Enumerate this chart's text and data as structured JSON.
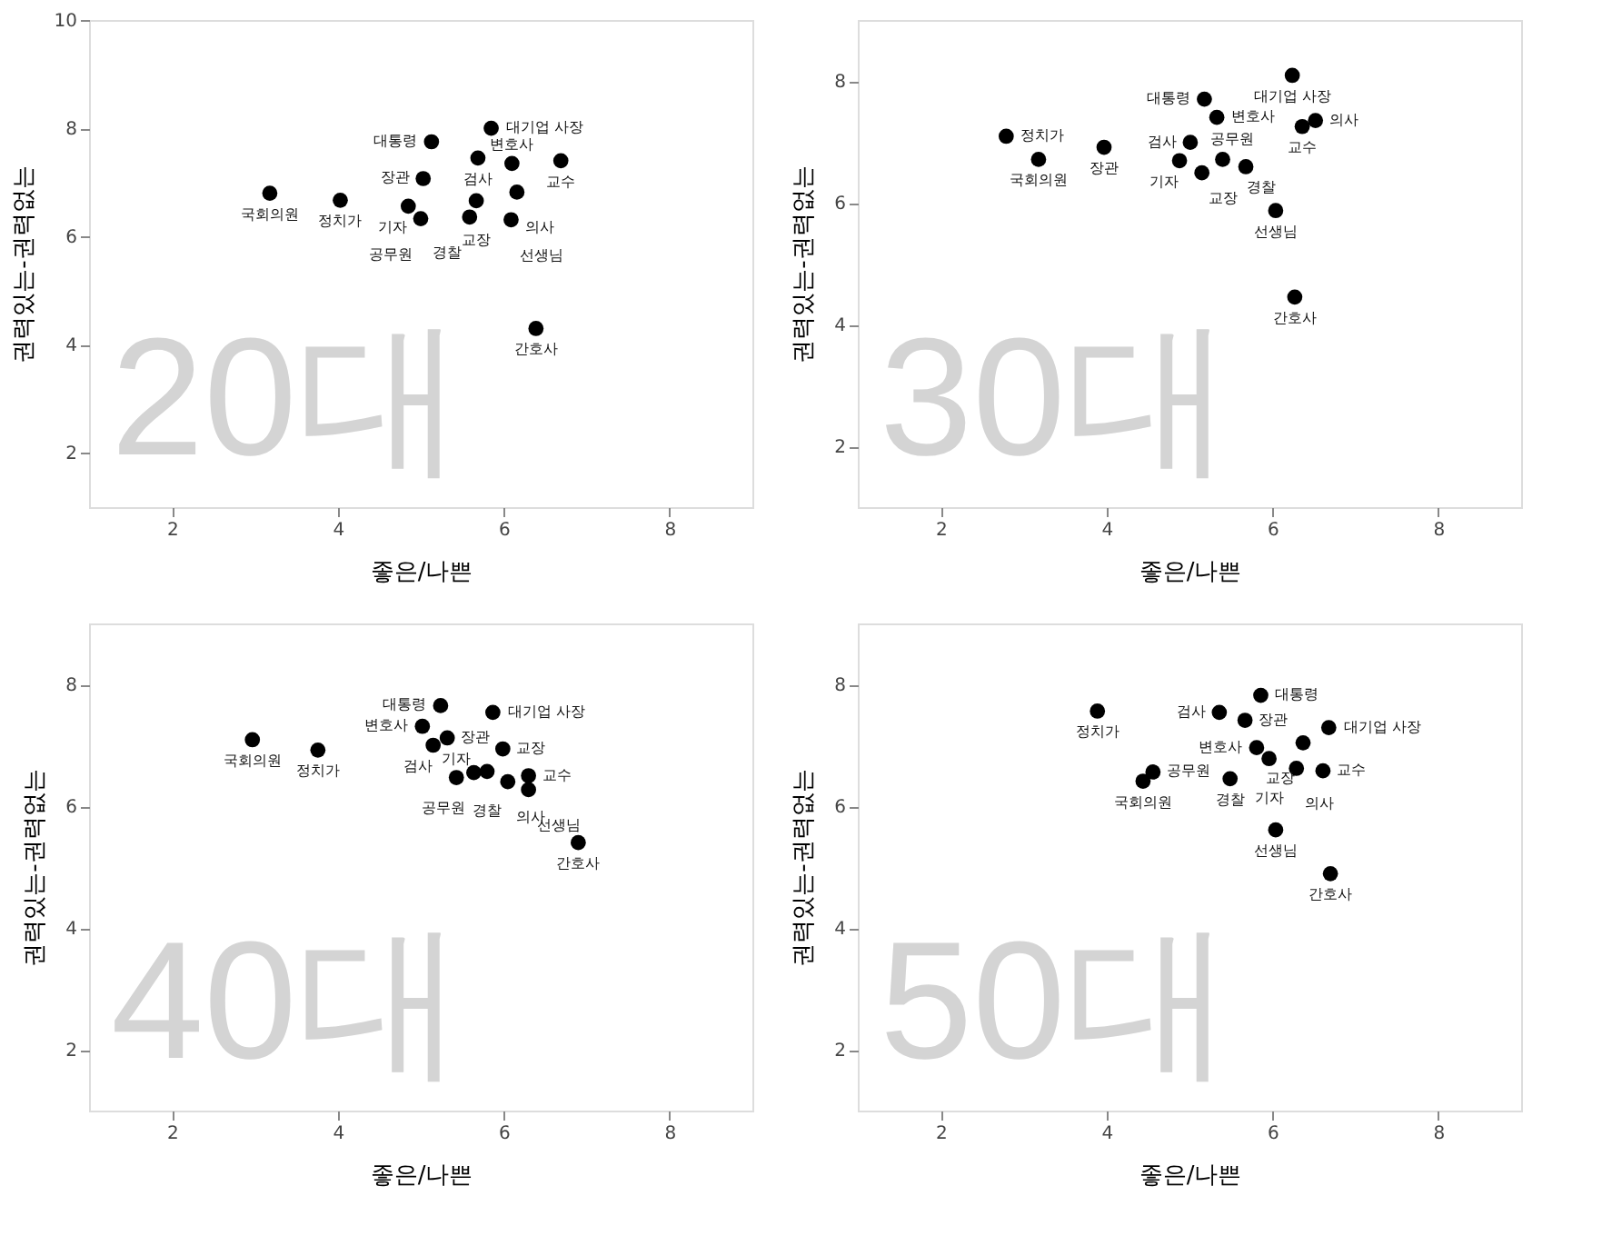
{
  "chart_data": [
    {
      "type": "scatter",
      "xlabel": "좋은/나쁜",
      "ylabel": "권력있는-권력없는",
      "xlim": [
        1,
        9
      ],
      "ylim": [
        1,
        10
      ],
      "xticks": [
        2,
        4,
        6,
        8
      ],
      "yticks": [
        2,
        4,
        6,
        8,
        10
      ],
      "grid": false,
      "marker": "circle",
      "annotations": [
        "20대"
      ],
      "series": [
        {
          "color": "#000000",
          "x": [
            3.18,
            4.03,
            5.13,
            5.85,
            5.69,
            6.1,
            6.69,
            5.03,
            6.16,
            4.85,
            5.0,
            5.67,
            5.59,
            6.09,
            6.39
          ],
          "values": [
            6.8,
            6.67,
            7.75,
            8.0,
            7.45,
            7.35,
            7.4,
            7.07,
            6.82,
            6.56,
            6.33,
            6.66,
            6.36,
            6.31,
            4.3
          ],
          "value_labels": [
            "국회의원",
            "정치가",
            "대통령",
            "대기업 사장",
            "검사",
            "변호사",
            "교수",
            "장관",
            "의사",
            "기자",
            "공무원",
            "교장",
            "경찰",
            "선생님",
            "간호사"
          ]
        }
      ]
    },
    {
      "type": "scatter",
      "xlabel": "좋은/나쁜",
      "ylabel": "권력있는-권력없는",
      "xlim": [
        1,
        9
      ],
      "ylim": [
        1,
        9
      ],
      "xticks": [
        2,
        4,
        6,
        8
      ],
      "yticks": [
        2,
        4,
        6,
        8
      ],
      "grid": false,
      "marker": "circle",
      "annotations": [
        "30대"
      ],
      "series": [
        {
          "color": "#000000",
          "x": [
            6.24,
            5.18,
            5.33,
            2.79,
            3.18,
            3.97,
            5.01,
            4.88,
            5.15,
            5.4,
            5.68,
            6.36,
            6.52,
            6.04,
            6.27
          ],
          "values": [
            8.09,
            7.7,
            7.4,
            7.09,
            6.71,
            6.91,
            6.99,
            6.69,
            6.49,
            6.71,
            6.59,
            7.25,
            7.35,
            5.87,
            4.45
          ],
          "value_labels": [
            "대기업 사장",
            "대통령",
            "변호사",
            "정치가",
            "국회의원",
            "장관",
            "검사",
            "기자",
            "공무원",
            "교장",
            "경찰",
            "교수",
            "의사",
            "선생님",
            "간호사"
          ]
        }
      ]
    },
    {
      "type": "scatter",
      "xlabel": "좋은/나쁜",
      "ylabel": "권력있는-권력없는",
      "xlim": [
        1,
        9
      ],
      "ylim": [
        1,
        9
      ],
      "xticks": [
        2,
        4,
        6,
        8
      ],
      "yticks": [
        2,
        4,
        6,
        8
      ],
      "grid": false,
      "marker": "circle",
      "annotations": [
        "40대"
      ],
      "series": [
        {
          "color": "#000000",
          "x": [
            2.97,
            3.76,
            5.24,
            5.87,
            5.02,
            5.32,
            5.15,
            5.99,
            5.43,
            5.64,
            5.8,
            6.3,
            6.05,
            6.3,
            6.9
          ],
          "values": [
            7.09,
            6.92,
            7.65,
            7.54,
            7.31,
            7.12,
            7.0,
            6.94,
            6.47,
            6.55,
            6.57,
            6.5,
            6.4,
            6.27,
            5.4
          ],
          "value_labels": [
            "국회의원",
            "정치가",
            "대통령",
            "대기업 사장",
            "변호사",
            "장관",
            "검사",
            "교장",
            "기자",
            "공무원",
            "경찰",
            "교수",
            "의사",
            "선생님",
            "간호사"
          ]
        }
      ]
    },
    {
      "type": "scatter",
      "xlabel": "좋은/나쁜",
      "ylabel": "권력있는-권력없는",
      "xlim": [
        1,
        9
      ],
      "ylim": [
        1,
        9
      ],
      "xticks": [
        2,
        4,
        6,
        8
      ],
      "yticks": [
        2,
        4,
        6,
        8
      ],
      "grid": false,
      "marker": "circle",
      "annotations": [
        "50대"
      ],
      "series": [
        {
          "color": "#000000",
          "x": [
            3.89,
            5.86,
            5.36,
            5.67,
            6.68,
            6.37,
            5.81,
            5.96,
            6.29,
            6.61,
            4.56,
            4.44,
            5.49,
            6.04,
            6.7
          ],
          "values": [
            7.56,
            7.82,
            7.54,
            7.41,
            7.29,
            7.04,
            6.96,
            6.78,
            6.62,
            6.58,
            6.56,
            6.41,
            6.45,
            5.61,
            4.89
          ],
          "value_labels": [
            "정치가",
            "대통령",
            "검사",
            "장관",
            "대기업 사장",
            "교장",
            "변호사",
            "기자",
            "의사",
            "교수",
            "공무원",
            "국회의원",
            "경찰",
            "선생님",
            "간호사"
          ]
        }
      ]
    }
  ]
}
